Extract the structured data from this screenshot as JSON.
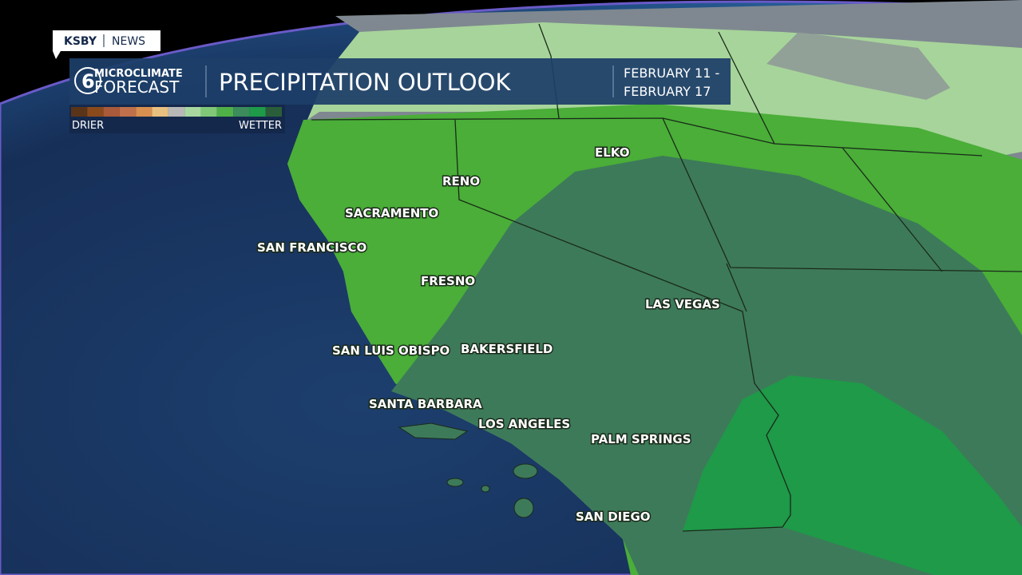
{
  "header": {
    "station": "KSBY",
    "section": "NEWS",
    "logo_number": "6",
    "brand_top": "MICROCLIMATE",
    "brand_bottom": "FORECAST",
    "title": "PRECIPITATION OUTLOOK",
    "dates": [
      "FEBRUARY 11 -",
      "FEBRUARY 17"
    ]
  },
  "legend": {
    "low_label": "DRIER",
    "high_label": "WETTER",
    "colors": [
      "#5a3418",
      "#8a4a1c",
      "#a85a3a",
      "#c0704a",
      "#d89050",
      "#e8c080",
      "#b8b8b8",
      "#a8d8a0",
      "#80c878",
      "#50b048",
      "#3c8c5c",
      "#1e9a48",
      "#2a5e3a"
    ]
  },
  "cities": [
    {
      "name": "ELKO"
    },
    {
      "name": "RENO"
    },
    {
      "name": "SACRAMENTO"
    },
    {
      "name": "SAN FRANCISCO"
    },
    {
      "name": "FRESNO"
    },
    {
      "name": "LAS VEGAS"
    },
    {
      "name": "SAN LUIS OBISPO"
    },
    {
      "name": "BAKERSFIELD"
    },
    {
      "name": "SANTA BARBARA"
    },
    {
      "name": "LOS ANGELES"
    },
    {
      "name": "PALM SPRINGS"
    },
    {
      "name": "SAN DIEGO"
    }
  ]
}
